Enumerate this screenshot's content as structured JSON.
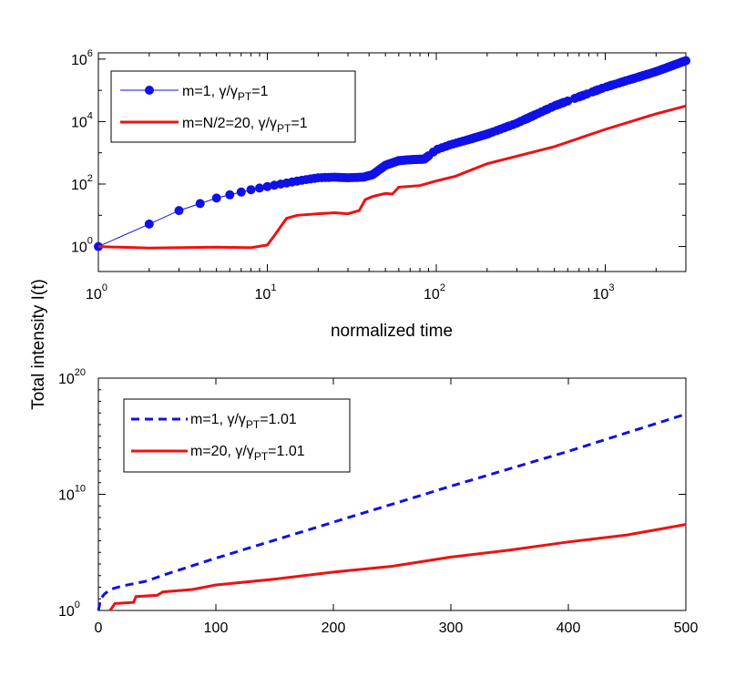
{
  "figure": {
    "ylabel": "Total intensity I(t)"
  },
  "chart_data": [
    {
      "type": "line",
      "scale": {
        "x": "log",
        "y": "log"
      },
      "xlabel": "normalized time",
      "xlim": [
        1,
        3000
      ],
      "ylim_exp": [
        -0.8,
        6.2
      ],
      "x_ticks": [
        {
          "base": "10",
          "exp": "0",
          "value": 1
        },
        {
          "base": "10",
          "exp": "1",
          "value": 10
        },
        {
          "base": "10",
          "exp": "2",
          "value": 100
        },
        {
          "base": "10",
          "exp": "3",
          "value": 1000
        }
      ],
      "y_ticks": [
        {
          "base": "10",
          "exp": "0",
          "value": 0
        },
        {
          "base": "10",
          "exp": "2",
          "value": 2
        },
        {
          "base": "10",
          "exp": "4",
          "value": 4
        },
        {
          "base": "10",
          "exp": "6",
          "value": 6
        }
      ],
      "legend": [
        {
          "pre": "m=1, γ/γ",
          "sub": "PT",
          "post": "=1"
        },
        {
          "pre": "m=N/2=20, γ/γ",
          "sub": "PT",
          "post": "=1"
        }
      ],
      "series": [
        {
          "name": "m=1, γ/γPT=1",
          "color": "#1010e8",
          "style": "line-markers",
          "points": [
            [
              1,
              0
            ],
            [
              2,
              0.72
            ],
            [
              3,
              1.15
            ],
            [
              5,
              1.55
            ],
            [
              8,
              1.82
            ],
            [
              12,
              2.0
            ],
            [
              16,
              2.12
            ],
            [
              20,
              2.2
            ],
            [
              25,
              2.22
            ],
            [
              30,
              2.2
            ],
            [
              37,
              2.22
            ],
            [
              42,
              2.3
            ],
            [
              50,
              2.6
            ],
            [
              60,
              2.75
            ],
            [
              70,
              2.78
            ],
            [
              85,
              2.8
            ],
            [
              100,
              3.1
            ],
            [
              120,
              3.25
            ],
            [
              150,
              3.4
            ],
            [
              200,
              3.6
            ],
            [
              300,
              3.95
            ],
            [
              500,
              4.5
            ],
            [
              1000,
              5.1
            ],
            [
              2000,
              5.6
            ],
            [
              3000,
              5.95
            ]
          ]
        },
        {
          "name": "m=N/2=20, γ/γPT=1",
          "color": "#ee1111",
          "style": "line",
          "points": [
            [
              1,
              0
            ],
            [
              2,
              -0.05
            ],
            [
              5,
              -0.02
            ],
            [
              8,
              -0.04
            ],
            [
              10,
              0.05
            ],
            [
              11,
              0.35
            ],
            [
              13,
              0.9
            ],
            [
              15,
              1.0
            ],
            [
              20,
              1.05
            ],
            [
              25,
              1.08
            ],
            [
              30,
              1.05
            ],
            [
              35,
              1.15
            ],
            [
              38,
              1.5
            ],
            [
              42,
              1.6
            ],
            [
              50,
              1.7
            ],
            [
              55,
              1.68
            ],
            [
              60,
              1.9
            ],
            [
              80,
              1.95
            ],
            [
              100,
              2.1
            ],
            [
              130,
              2.25
            ],
            [
              200,
              2.65
            ],
            [
              500,
              3.2
            ],
            [
              1000,
              3.75
            ],
            [
              2000,
              4.25
            ],
            [
              3000,
              4.5
            ]
          ]
        }
      ]
    },
    {
      "type": "line",
      "scale": {
        "x": "linear",
        "y": "log"
      },
      "xlim": [
        0,
        500
      ],
      "ylim_exp": [
        0,
        20
      ],
      "x_ticks": [
        0,
        100,
        200,
        300,
        400,
        500
      ],
      "y_ticks": [
        {
          "base": "10",
          "exp": "0",
          "value": 0
        },
        {
          "base": "10",
          "exp": "10",
          "value": 10
        },
        {
          "base": "10",
          "exp": "20",
          "value": 20
        }
      ],
      "legend": [
        {
          "pre": "m=1, γ/γ",
          "sub": "PT",
          "post": "=1.01"
        },
        {
          "pre": "m=20, γ/γ",
          "sub": "PT",
          "post": "=1.01"
        }
      ],
      "series": [
        {
          "name": "m=1, γ/γPT=1.01",
          "color": "#1010e8",
          "style": "dashed",
          "points": [
            [
              0,
              0
            ],
            [
              2,
              1.0
            ],
            [
              5,
              1.4
            ],
            [
              10,
              1.8
            ],
            [
              20,
              2.1
            ],
            [
              40,
              2.5
            ],
            [
              60,
              3.2
            ],
            [
              100,
              4.5
            ],
            [
              200,
              7.6
            ],
            [
              300,
              10.7
            ],
            [
              400,
              13.7
            ],
            [
              500,
              16.9
            ]
          ]
        },
        {
          "name": "m=20, γ/γPT=1.01",
          "color": "#ee1111",
          "style": "line",
          "points": [
            [
              10,
              0
            ],
            [
              12,
              0.3
            ],
            [
              14,
              0.6
            ],
            [
              30,
              0.7
            ],
            [
              32,
              1.2
            ],
            [
              50,
              1.3
            ],
            [
              55,
              1.6
            ],
            [
              80,
              1.8
            ],
            [
              100,
              2.2
            ],
            [
              150,
              2.7
            ],
            [
              200,
              3.3
            ],
            [
              250,
              3.8
            ],
            [
              300,
              4.6
            ],
            [
              350,
              5.2
            ],
            [
              400,
              5.9
            ],
            [
              450,
              6.5
            ],
            [
              500,
              7.4
            ]
          ]
        }
      ]
    }
  ]
}
